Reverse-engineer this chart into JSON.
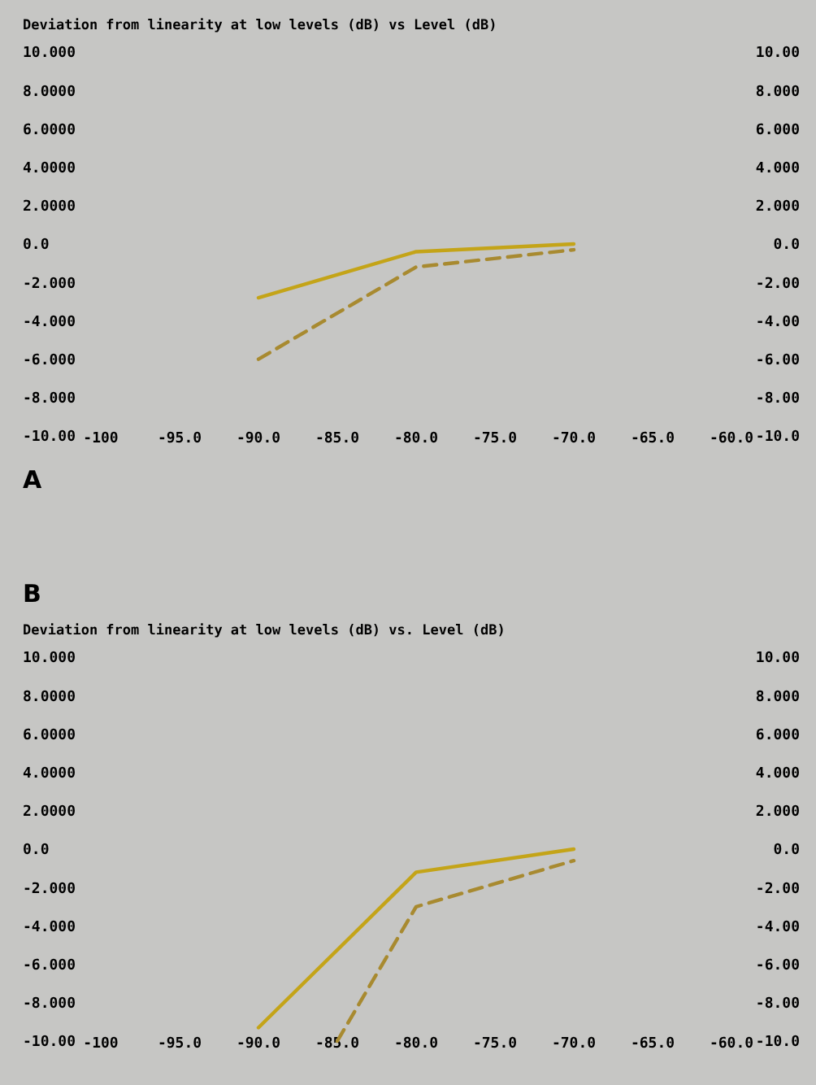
{
  "chart_data": [
    {
      "type": "line",
      "title": "Deviation from linearity at low levels (dB) vs Level (dB)",
      "annotations": [
        "A"
      ],
      "xlim": [
        -100,
        -60
      ],
      "xticks": [
        {
          "value": -100,
          "label": "-100"
        },
        {
          "value": -95,
          "label": "-95.0"
        },
        {
          "value": -90,
          "label": "-90.0"
        },
        {
          "value": -85,
          "label": "-85.0"
        },
        {
          "value": -80,
          "label": "-80.0"
        },
        {
          "value": -75,
          "label": "-75.0"
        },
        {
          "value": -70,
          "label": "-70.0"
        },
        {
          "value": -65,
          "label": "-65.0"
        },
        {
          "value": -60,
          "label": "-60.0"
        }
      ],
      "ylim": [
        -10,
        10
      ],
      "yticks": [
        {
          "value": 10,
          "label": "10.000"
        },
        {
          "value": 8,
          "label": "8.0000"
        },
        {
          "value": 6,
          "label": "6.0000"
        },
        {
          "value": 4,
          "label": "4.0000"
        },
        {
          "value": 2,
          "label": "2.0000"
        },
        {
          "value": 0,
          "label": "0.0"
        },
        {
          "value": -2,
          "label": "-2.000"
        },
        {
          "value": -4,
          "label": "-4.000"
        },
        {
          "value": -6,
          "label": "-6.000"
        },
        {
          "value": -8,
          "label": "-8.000"
        },
        {
          "value": -10,
          "label": "-10.00"
        }
      ],
      "y2lim": [
        -10,
        10
      ],
      "y2ticks": [
        {
          "value": 10,
          "label": "10.00"
        },
        {
          "value": 8,
          "label": "8.000"
        },
        {
          "value": 6,
          "label": "6.000"
        },
        {
          "value": 4,
          "label": "4.000"
        },
        {
          "value": 2,
          "label": "2.000"
        },
        {
          "value": 0,
          "label": "0.0"
        },
        {
          "value": -2,
          "label": "-2.00"
        },
        {
          "value": -4,
          "label": "-4.00"
        },
        {
          "value": -6,
          "label": "-6.00"
        },
        {
          "value": -8,
          "label": "-8.00"
        },
        {
          "value": -10,
          "label": "-10.0"
        }
      ],
      "series": [
        {
          "color": "#c4a418",
          "line_style": "solid",
          "x": [
            -90,
            -80,
            -70
          ],
          "values": [
            -2.8,
            -0.4,
            0
          ]
        },
        {
          "color": "#a88a30",
          "line_style": "dashed",
          "x": [
            -90,
            -80,
            -70
          ],
          "values": [
            -6,
            -1.2,
            -0.3
          ]
        }
      ]
    },
    {
      "type": "line",
      "title": "Deviation from linearity at low levels (dB) vs. Level (dB)",
      "annotations": [
        "B"
      ],
      "xlim": [
        -100,
        -60
      ],
      "xticks": [
        {
          "value": -100,
          "label": "-100"
        },
        {
          "value": -95,
          "label": "-95.0"
        },
        {
          "value": -90,
          "label": "-90.0"
        },
        {
          "value": -85,
          "label": "-85.0"
        },
        {
          "value": -80,
          "label": "-80.0"
        },
        {
          "value": -75,
          "label": "-75.0"
        },
        {
          "value": -70,
          "label": "-70.0"
        },
        {
          "value": -65,
          "label": "-65.0"
        },
        {
          "value": -60,
          "label": "-60.0"
        }
      ],
      "ylim": [
        -10,
        10
      ],
      "yticks": [
        {
          "value": 10,
          "label": "10.000"
        },
        {
          "value": 8,
          "label": "8.0000"
        },
        {
          "value": 6,
          "label": "6.0000"
        },
        {
          "value": 4,
          "label": "4.0000"
        },
        {
          "value": 2,
          "label": "2.0000"
        },
        {
          "value": 0,
          "label": "0.0"
        },
        {
          "value": -2,
          "label": "-2.000"
        },
        {
          "value": -4,
          "label": "-4.000"
        },
        {
          "value": -6,
          "label": "-6.000"
        },
        {
          "value": -8,
          "label": "-8.000"
        },
        {
          "value": -10,
          "label": "-10.00"
        }
      ],
      "y2lim": [
        -10,
        10
      ],
      "y2ticks": [
        {
          "value": 10,
          "label": "10.00"
        },
        {
          "value": 8,
          "label": "8.000"
        },
        {
          "value": 6,
          "label": "6.000"
        },
        {
          "value": 4,
          "label": "4.000"
        },
        {
          "value": 2,
          "label": "2.000"
        },
        {
          "value": 0,
          "label": "0.0"
        },
        {
          "value": -2,
          "label": "-2.00"
        },
        {
          "value": -4,
          "label": "-4.00"
        },
        {
          "value": -6,
          "label": "-6.00"
        },
        {
          "value": -8,
          "label": "-8.00"
        },
        {
          "value": -10,
          "label": "-10.0"
        }
      ],
      "series": [
        {
          "color": "#c4a418",
          "line_style": "solid",
          "x": [
            -90,
            -80,
            -70
          ],
          "values": [
            -9.3,
            -1.2,
            0
          ]
        },
        {
          "color": "#a88a30",
          "line_style": "dashed",
          "x": [
            -85,
            -80,
            -70
          ],
          "values": [
            -10,
            -3,
            -0.6
          ]
        }
      ]
    }
  ]
}
